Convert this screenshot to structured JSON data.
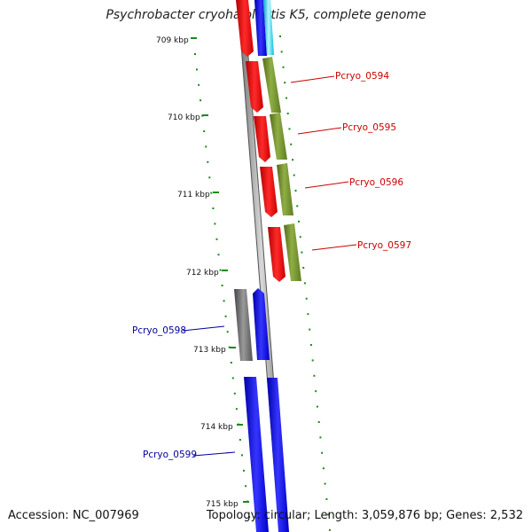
{
  "title": "Psychrobacter cryohalolentis K5, complete genome",
  "ruler": [
    "709 kbp",
    "710 kbp",
    "711 kbp",
    "712 kbp",
    "713 kbp",
    "714 kbp",
    "715 kbp"
  ],
  "genes": [
    {
      "label": "Pcryo_0594",
      "color": "#cc0000"
    },
    {
      "label": "Pcryo_0595",
      "color": "#cc0000"
    },
    {
      "label": "Pcryo_0596",
      "color": "#cc0000"
    },
    {
      "label": "Pcryo_0597",
      "color": "#cc0000"
    },
    {
      "label": "Pcryo_0598",
      "color": "#00009f"
    },
    {
      "label": "Pcryo_0599",
      "color": "#00009f"
    }
  ],
  "footer": {
    "accession": "Accession: NC_007969",
    "summary": "Topology: circular; Length: 3,059,876 bp; Genes: 2,532"
  }
}
